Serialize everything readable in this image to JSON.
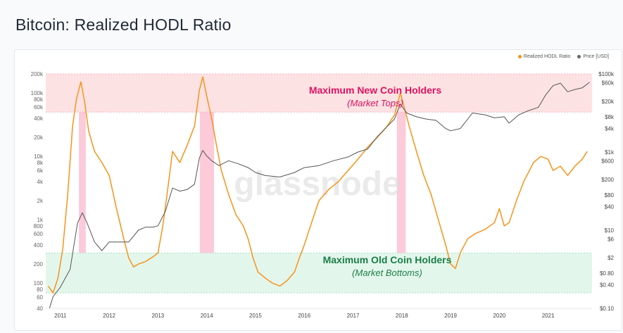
{
  "page": {
    "title": "Bitcoin: Realized HODL Ratio"
  },
  "colors": {
    "hodl_ratio": "#f7931a",
    "price": "#555555",
    "top_band": "#fde2e4",
    "bottom_band": "#e3f6ec",
    "top_text": "#e0115f",
    "bottom_text": "#1a7f45",
    "top_highlight": "#fbb8cc",
    "bottom_highlight": "#bfe9d2"
  },
  "chart_data": {
    "type": "line",
    "title": "",
    "legend": {
      "placement": "top-right",
      "items": [
        "Realized HODL Ratio",
        "Price [USD]"
      ]
    },
    "watermark": "glassnode",
    "x_axis": {
      "ticks": [
        "2011",
        "2012",
        "2013",
        "2014",
        "2015",
        "2016",
        "2017",
        "2018",
        "2019",
        "2020",
        "2021"
      ],
      "range": [
        2010.7,
        2021.9
      ]
    },
    "y_left": {
      "scale": "log",
      "range": [
        40,
        200000
      ],
      "ticks": [
        {
          "v": 200000,
          "l": "200k"
        },
        {
          "v": 100000,
          "l": "100k"
        },
        {
          "v": 80000,
          "l": "80k"
        },
        {
          "v": 60000,
          "l": "60k"
        },
        {
          "v": 40000,
          "l": "40k"
        },
        {
          "v": 20000,
          "l": "20k"
        },
        {
          "v": 10000,
          "l": "10k"
        },
        {
          "v": 8000,
          "l": "8k"
        },
        {
          "v": 6000,
          "l": "6k"
        },
        {
          "v": 4000,
          "l": "4k"
        },
        {
          "v": 2000,
          "l": "2k"
        },
        {
          "v": 1000,
          "l": "1k"
        },
        {
          "v": 800,
          "l": "800"
        },
        {
          "v": 600,
          "l": "600"
        },
        {
          "v": 400,
          "l": "400"
        },
        {
          "v": 200,
          "l": "200"
        },
        {
          "v": 100,
          "l": "100"
        },
        {
          "v": 80,
          "l": "80"
        },
        {
          "v": 60,
          "l": "60"
        },
        {
          "v": 40,
          "l": "40"
        }
      ]
    },
    "y_right": {
      "scale": "log",
      "range": [
        0.1,
        100000
      ],
      "ticks": [
        {
          "v": 100000,
          "l": "$100k"
        },
        {
          "v": 60000,
          "l": "$60k"
        },
        {
          "v": 20000,
          "l": "$20k"
        },
        {
          "v": 8000,
          "l": "$8k"
        },
        {
          "v": 4000,
          "l": "$4k"
        },
        {
          "v": 1000,
          "l": "$1k"
        },
        {
          "v": 600,
          "l": "$600"
        },
        {
          "v": 200,
          "l": "$200"
        },
        {
          "v": 80,
          "l": "$80"
        },
        {
          "v": 40,
          "l": "$40"
        },
        {
          "v": 10,
          "l": "$10"
        },
        {
          "v": 6,
          "l": "$6"
        },
        {
          "v": 2,
          "l": "$2"
        },
        {
          "v": 0.8,
          "l": "$0.80"
        },
        {
          "v": 0.4,
          "l": "$0.40"
        },
        {
          "v": 0.1,
          "l": "$0.10"
        }
      ]
    },
    "bands": [
      {
        "name": "top",
        "from": 50000,
        "to": 200000,
        "label": "Maximum New Coin Holders",
        "sublabel": "(Market Tops)"
      },
      {
        "name": "bottom",
        "from": 70,
        "to": 300,
        "label": "Maximum Old Coin Holders",
        "sublabel": "(Market Bottoms)"
      }
    ],
    "highlights": [
      {
        "type": "top",
        "x0": 2011.38,
        "x1": 2011.52
      },
      {
        "type": "bottom",
        "x0": 2012.46,
        "x1": 2013.0
      },
      {
        "type": "top",
        "x0": 2013.86,
        "x1": 2014.15
      },
      {
        "type": "bottom",
        "x0": 2014.96,
        "x1": 2015.97
      },
      {
        "type": "top",
        "x0": 2017.9,
        "x1": 2018.08
      },
      {
        "type": "bottom",
        "x0": 2018.97,
        "x1": 2019.35
      }
    ],
    "series": [
      {
        "name": "Realized HODL Ratio",
        "axis": "left",
        "x": [
          2010.75,
          2010.85,
          2010.95,
          2011.05,
          2011.15,
          2011.25,
          2011.33,
          2011.42,
          2011.5,
          2011.58,
          2011.7,
          2011.85,
          2012.0,
          2012.15,
          2012.3,
          2012.4,
          2012.5,
          2012.6,
          2012.75,
          2012.9,
          2013.0,
          2013.1,
          2013.2,
          2013.3,
          2013.45,
          2013.6,
          2013.75,
          2013.85,
          2013.92,
          2014.0,
          2014.1,
          2014.2,
          2014.3,
          2014.45,
          2014.6,
          2014.75,
          2014.85,
          2014.95,
          2015.05,
          2015.2,
          2015.35,
          2015.5,
          2015.65,
          2015.8,
          2015.9,
          2016.0,
          2016.15,
          2016.3,
          2016.5,
          2016.7,
          2016.9,
          2017.1,
          2017.3,
          2017.5,
          2017.7,
          2017.85,
          2017.97,
          2018.05,
          2018.15,
          2018.3,
          2018.45,
          2018.6,
          2018.75,
          2018.9,
          2019.0,
          2019.1,
          2019.2,
          2019.35,
          2019.5,
          2019.7,
          2019.9,
          2020.0,
          2020.1,
          2020.2,
          2020.35,
          2020.5,
          2020.7,
          2020.85,
          2021.0,
          2021.1,
          2021.25,
          2021.4,
          2021.55,
          2021.7,
          2021.8
        ],
        "y": [
          90,
          70,
          120,
          350,
          2500,
          30000,
          80000,
          150000,
          70000,
          25000,
          12000,
          8000,
          5000,
          1500,
          500,
          250,
          180,
          200,
          220,
          260,
          300,
          800,
          3000,
          12000,
          8000,
          15000,
          30000,
          110000,
          180000,
          90000,
          40000,
          15000,
          6000,
          2500,
          1200,
          800,
          500,
          250,
          150,
          120,
          100,
          90,
          110,
          150,
          250,
          400,
          900,
          2000,
          3000,
          4000,
          6000,
          9000,
          14000,
          20000,
          30000,
          45000,
          100000,
          60000,
          30000,
          12000,
          5000,
          2500,
          1000,
          400,
          200,
          170,
          300,
          500,
          600,
          700,
          900,
          1500,
          800,
          900,
          2000,
          4000,
          8000,
          10000,
          9000,
          6000,
          7000,
          5000,
          7000,
          9000,
          12000
        ]
      },
      {
        "name": "Price [USD]",
        "axis": "right",
        "x": [
          2010.75,
          2010.85,
          2011.0,
          2011.2,
          2011.35,
          2011.45,
          2011.55,
          2011.7,
          2011.85,
          2012.0,
          2012.2,
          2012.4,
          2012.6,
          2012.75,
          2012.9,
          2013.0,
          2013.15,
          2013.3,
          2013.45,
          2013.6,
          2013.75,
          2013.85,
          2013.92,
          2014.0,
          2014.1,
          2014.25,
          2014.45,
          2014.65,
          2014.85,
          2015.0,
          2015.2,
          2015.5,
          2015.8,
          2016.0,
          2016.3,
          2016.6,
          2016.9,
          2017.1,
          2017.3,
          2017.5,
          2017.7,
          2017.85,
          2017.97,
          2018.1,
          2018.3,
          2018.5,
          2018.7,
          2018.9,
          2019.0,
          2019.2,
          2019.45,
          2019.7,
          2019.9,
          2020.1,
          2020.2,
          2020.4,
          2020.6,
          2020.8,
          2020.95,
          2021.1,
          2021.25,
          2021.4,
          2021.55,
          2021.7,
          2021.85
        ],
        "y": [
          0.08,
          0.2,
          0.35,
          1,
          15,
          28,
          15,
          5,
          3,
          5,
          5,
          5,
          10,
          12,
          12,
          13,
          30,
          120,
          100,
          110,
          150,
          700,
          1100,
          800,
          600,
          450,
          600,
          500,
          400,
          300,
          250,
          230,
          300,
          400,
          450,
          600,
          750,
          1000,
          1200,
          2500,
          4500,
          7000,
          17000,
          10000,
          8000,
          7000,
          6500,
          4000,
          3500,
          4000,
          10000,
          9000,
          7500,
          8000,
          5500,
          9000,
          11500,
          14000,
          29000,
          50000,
          58000,
          35000,
          40000,
          44000,
          61000
        ]
      }
    ]
  }
}
